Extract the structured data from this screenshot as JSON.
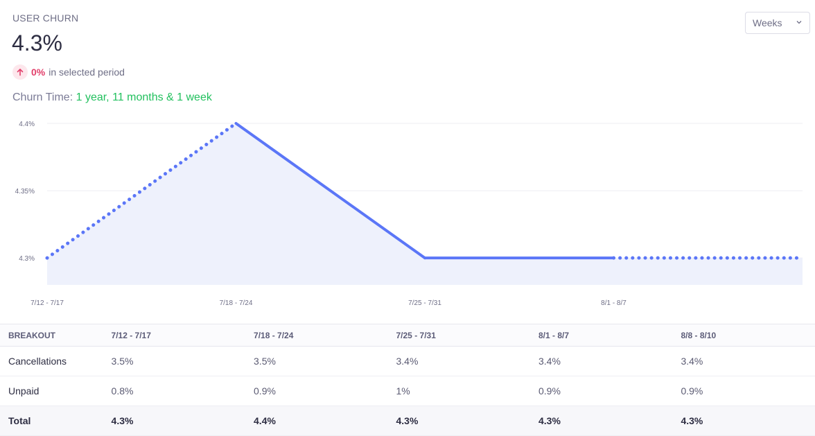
{
  "kpi": {
    "title": "USER CHURN",
    "value": "4.3%",
    "delta_value": "0%",
    "delta_text": "in selected period",
    "churn_time_label": "Churn Time:",
    "churn_time_value": "1 year, 11 months & 1 week"
  },
  "period_select": {
    "value": "Weeks",
    "options": [
      "Weeks"
    ]
  },
  "chart_data": {
    "type": "line",
    "title": "",
    "categories": [
      "7/12 - 7/17",
      "7/18 - 7/24",
      "7/25 - 7/31",
      "8/1 - 8/7",
      "8/8 - 8/10"
    ],
    "x_tick_labels": [
      "7/12 - 7/17",
      "7/18 - 7/24",
      "7/25 - 7/31",
      "8/1 - 8/7"
    ],
    "series": [
      {
        "values": [
          4.3,
          4.4,
          4.3,
          4.3,
          4.3
        ]
      }
    ],
    "partial_periods_dotted": [
      "7/12 - 7/17",
      "8/8 - 8/10"
    ],
    "y_ticks": [
      {
        "value": 4.3,
        "label": "4.3%"
      },
      {
        "value": 4.35,
        "label": "4.35%"
      },
      {
        "value": 4.4,
        "label": "4.4%"
      }
    ],
    "ylim": [
      4.28,
      4.4
    ],
    "grid": true,
    "area_fill": true,
    "colors": {
      "line": "#5b76f7",
      "area": "#eef1fc",
      "grid": "#ececf2"
    }
  },
  "breakout": {
    "header": [
      "BREAKOUT",
      "7/12 - 7/17",
      "7/18 - 7/24",
      "7/25 - 7/31",
      "8/1 - 8/7",
      "8/8 - 8/10"
    ],
    "rows": [
      {
        "label": "Cancellations",
        "values": [
          "3.5%",
          "3.5%",
          "3.4%",
          "3.4%",
          "3.4%"
        ]
      },
      {
        "label": "Unpaid",
        "values": [
          "0.8%",
          "0.9%",
          "1%",
          "0.9%",
          "0.9%"
        ]
      },
      {
        "label": "Total",
        "values": [
          "4.3%",
          "4.4%",
          "4.3%",
          "4.3%",
          "4.3%"
        ]
      }
    ]
  }
}
